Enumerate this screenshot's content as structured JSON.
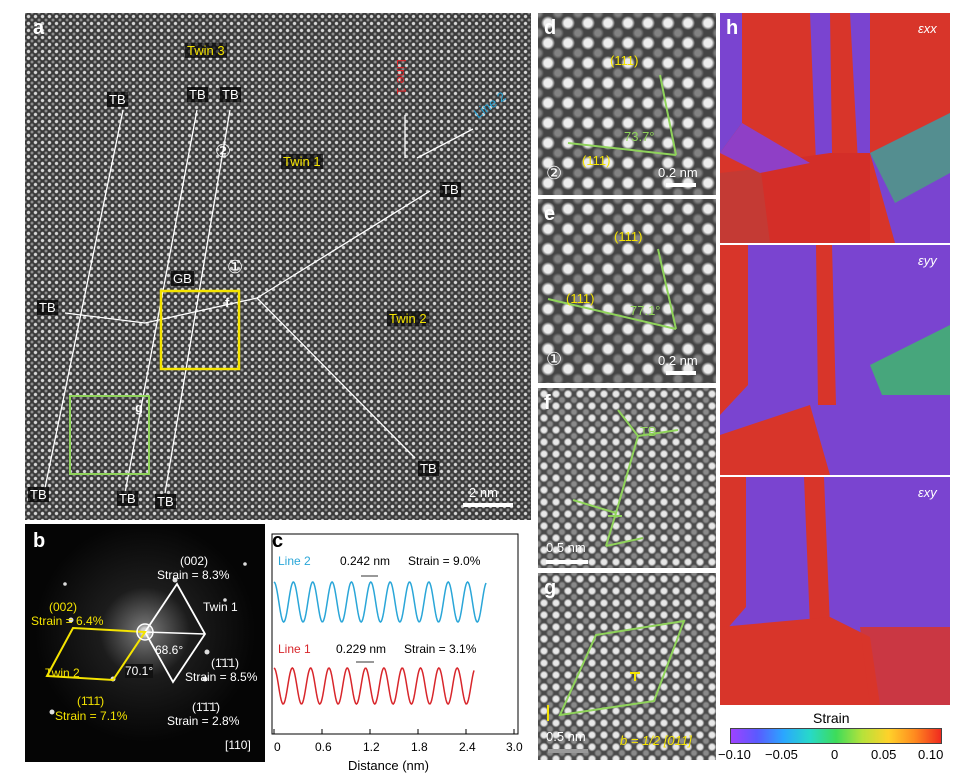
{
  "panel_a": {
    "label": "a",
    "twin3": "Twin 3",
    "twin1": "Twin 1",
    "twin2": "Twin 2",
    "tb": "TB",
    "gb": "GB",
    "line1": "Line 1",
    "line2": "Line 2",
    "circle1": "①",
    "circle2": "②",
    "box_f": "f",
    "box_g": "g",
    "scale": "2 nm"
  },
  "panel_b": {
    "label": "b",
    "s1": "(002)",
    "s1_strain": "Strain = 8.3%",
    "s2": "(002)",
    "s2_strain": "Strain = 6.4%",
    "twin1": "Twin 1",
    "twin2": "Twin 2",
    "angle1": "68.6°",
    "angle2": "70.1°",
    "s3": "(1̄1̄1)",
    "s3_strain": "Strain = 8.5%",
    "s4": "(1̄11̄)",
    "s4_strain": "Strain = 7.1%",
    "s5": "(1̄1̄1̄)",
    "s5_strain": "Strain = 2.8%",
    "zone": "[110]"
  },
  "panel_c": {
    "label": "c",
    "line2_name": "Line 2",
    "line2_d": "0.242 nm",
    "line2_strain": "Strain = 9.0%",
    "line1_name": "Line 1",
    "line1_d": "0.229 nm",
    "line1_strain": "Strain = 3.1%",
    "xticks": [
      "0",
      "0.6",
      "1.2",
      "1.8",
      "2.4",
      "3.0"
    ],
    "xlabel": "Distance (nm)",
    "line2_color": "#2aa6d8",
    "line1_color": "#d8262b"
  },
  "panel_d": {
    "label": "d",
    "top": "(111)",
    "bottom": "(111)",
    "angle": "73.7°",
    "circle": "②",
    "scale": "0.2 nm"
  },
  "panel_e": {
    "label": "e",
    "top": "(111)",
    "bottom": "(111)",
    "angle": "77.1°",
    "circle": "①",
    "scale": "0.2 nm"
  },
  "panel_f": {
    "label": "f",
    "tb": "TB",
    "scale": "0.5 nm"
  },
  "panel_g": {
    "label": "g",
    "scale": "0.5 nm",
    "burgers": "b = 1/2 [011]"
  },
  "panel_h": {
    "label": "h",
    "exx": "εxx",
    "eyy": "εyy",
    "exy": "εxy",
    "colorbar_title": "Strain",
    "colorbar_ticks": [
      "−0.10",
      "−0.05",
      "0",
      "0.05",
      "0.10"
    ]
  }
}
